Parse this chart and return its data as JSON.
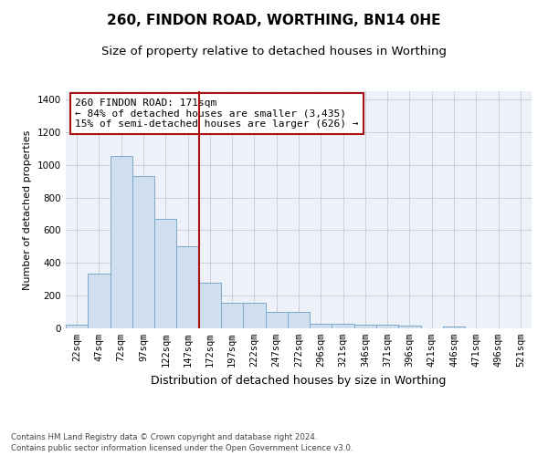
{
  "title1": "260, FINDON ROAD, WORTHING, BN14 0HE",
  "title2": "Size of property relative to detached houses in Worthing",
  "xlabel": "Distribution of detached houses by size in Worthing",
  "ylabel": "Number of detached properties",
  "categories": [
    "22sqm",
    "47sqm",
    "72sqm",
    "97sqm",
    "122sqm",
    "147sqm",
    "172sqm",
    "197sqm",
    "222sqm",
    "247sqm",
    "272sqm",
    "296sqm",
    "321sqm",
    "346sqm",
    "371sqm",
    "396sqm",
    "421sqm",
    "446sqm",
    "471sqm",
    "496sqm",
    "521sqm"
  ],
  "values": [
    20,
    335,
    1055,
    930,
    670,
    500,
    280,
    155,
    155,
    100,
    100,
    30,
    30,
    20,
    20,
    15,
    0,
    10,
    0,
    0,
    0
  ],
  "bar_color": "#d0dff0",
  "bar_edge_color": "#7aaac8",
  "highlight_line_color": "#aa1111",
  "annotation_text": "260 FINDON ROAD: 171sqm\n← 84% of detached houses are smaller (3,435)\n15% of semi-detached houses are larger (626) →",
  "annotation_box_color": "#aa1111",
  "ylim": [
    0,
    1450
  ],
  "yticks": [
    0,
    200,
    400,
    600,
    800,
    1000,
    1200,
    1400
  ],
  "grid_color": "#c8c8d0",
  "plot_bg_color": "#edf1f8",
  "footer1": "Contains HM Land Registry data © Crown copyright and database right 2024.",
  "footer2": "Contains public sector information licensed under the Open Government Licence v3.0.",
  "title1_fontsize": 11,
  "title2_fontsize": 9.5,
  "xlabel_fontsize": 9,
  "ylabel_fontsize": 8,
  "tick_fontsize": 7.5,
  "annotation_fontsize": 8
}
